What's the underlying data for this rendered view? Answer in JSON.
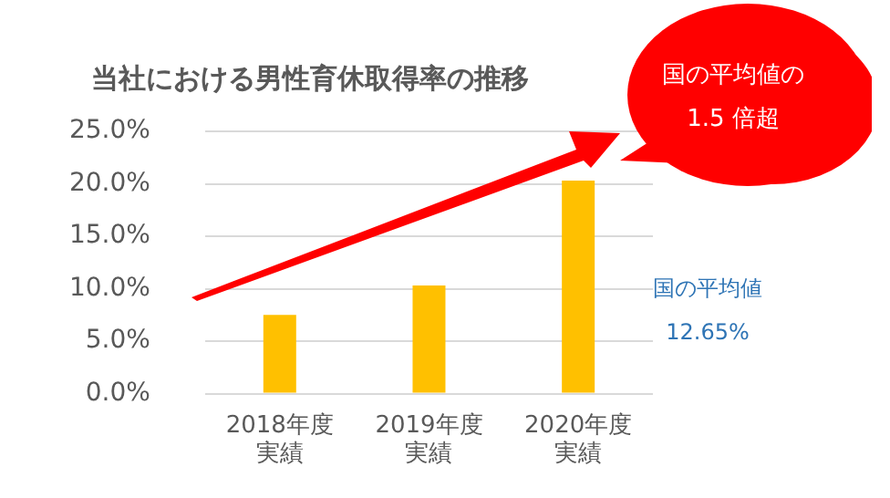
{
  "chart_data": {
    "type": "bar",
    "title": "当社における男性育休取得率の推移",
    "categories": [
      "2018年度実績",
      "2019年度実績",
      "2020年度実績"
    ],
    "values": [
      7.5,
      10.3,
      20.3
    ],
    "color": "#ffc000",
    "ylim": [
      0,
      25
    ],
    "yticks": [
      {
        "value": 0,
        "label": "0.0%"
      },
      {
        "value": 5,
        "label": "5.0%"
      },
      {
        "value": 10,
        "label": "10.0%"
      },
      {
        "value": 15,
        "label": "15.0%"
      },
      {
        "value": 20,
        "label": "20.0%"
      },
      {
        "value": 25,
        "label": "25.0%"
      }
    ],
    "grid": "y",
    "annotations": [
      "国の平均値の\n1.5 倍超",
      "国の平均値\n12.65%"
    ]
  }
}
